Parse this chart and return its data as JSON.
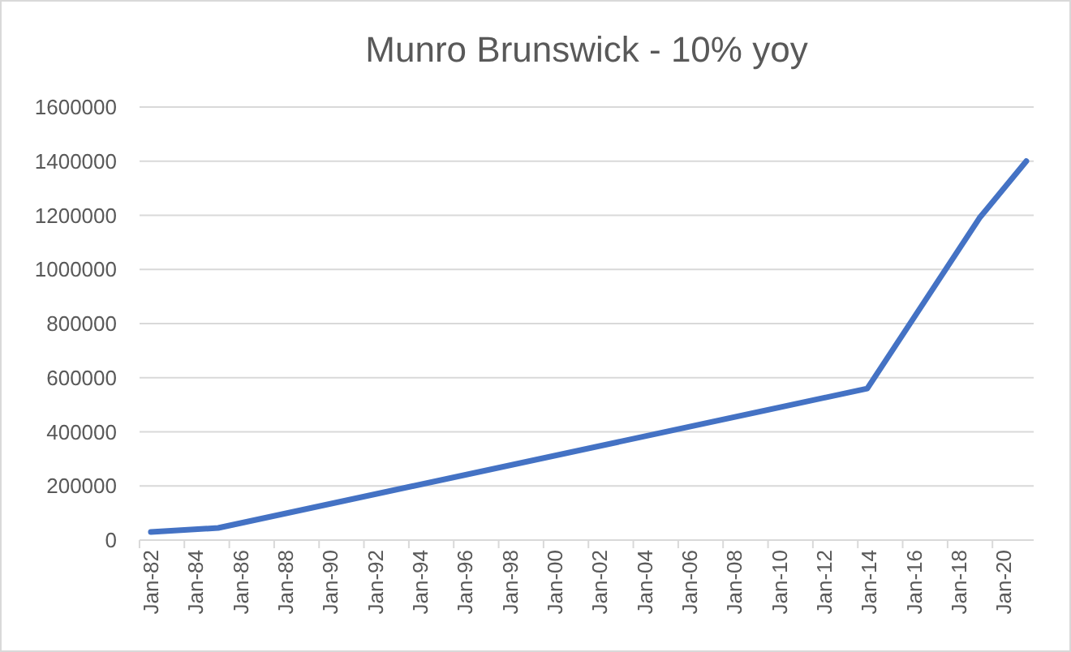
{
  "chart_data": {
    "type": "line",
    "title": "Munro Brunswick - 10% yoy",
    "x": [
      "1982-01",
      "1985-01",
      "2013-12",
      "2018-12",
      "2021-01"
    ],
    "series": [
      {
        "color": "#4472c4",
        "values": [
          30000,
          45000,
          560000,
          1190000,
          1400000
        ]
      }
    ],
    "xlim": [
      "1981-07",
      "2021-05"
    ],
    "xticks": [
      {
        "value": "1982-01",
        "label": "Jan-82"
      },
      {
        "value": "1984-01",
        "label": "Jan-84"
      },
      {
        "value": "1986-01",
        "label": "Jan-86"
      },
      {
        "value": "1988-01",
        "label": "Jan-88"
      },
      {
        "value": "1990-01",
        "label": "Jan-90"
      },
      {
        "value": "1992-01",
        "label": "Jan-92"
      },
      {
        "value": "1994-01",
        "label": "Jan-94"
      },
      {
        "value": "1996-01",
        "label": "Jan-96"
      },
      {
        "value": "1998-01",
        "label": "Jan-98"
      },
      {
        "value": "2000-01",
        "label": "Jan-00"
      },
      {
        "value": "2002-01",
        "label": "Jan-02"
      },
      {
        "value": "2004-01",
        "label": "Jan-04"
      },
      {
        "value": "2006-01",
        "label": "Jan-06"
      },
      {
        "value": "2008-01",
        "label": "Jan-08"
      },
      {
        "value": "2010-01",
        "label": "Jan-10"
      },
      {
        "value": "2012-01",
        "label": "Jan-12"
      },
      {
        "value": "2014-01",
        "label": "Jan-14"
      },
      {
        "value": "2016-01",
        "label": "Jan-16"
      },
      {
        "value": "2018-01",
        "label": "Jan-18"
      },
      {
        "value": "2020-01",
        "label": "Jan-20"
      }
    ],
    "ylim": [
      0,
      1600000
    ],
    "yticks": [
      0,
      200000,
      400000,
      600000,
      800000,
      1000000,
      1200000,
      1400000,
      1600000
    ],
    "grid": "y",
    "marker": "none",
    "line_style": "solid"
  }
}
